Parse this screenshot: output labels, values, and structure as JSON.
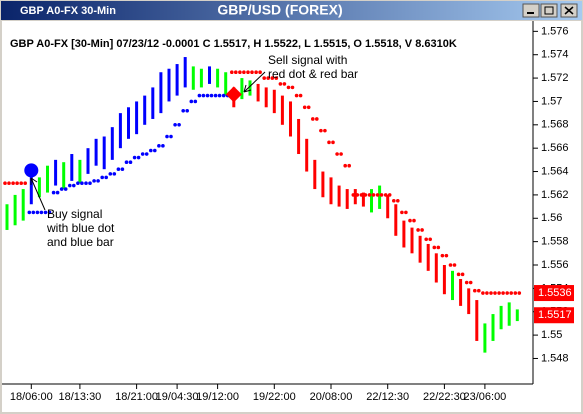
{
  "window": {
    "title": "GBP A0-FX 30-Min",
    "center_title": "GBP/USD (FOREX)"
  },
  "chart_data": {
    "type": "bar-stops",
    "header": "GBP A0-FX [30-Min] 07/23/12 -0.0001 C 1.5517, H 1.5522, L 1.5515, O 1.5518, V 8.6310K",
    "categories": [
      null,
      null,
      null,
      "18/06:00",
      null,
      null,
      null,
      null,
      null,
      "18/13:30",
      null,
      null,
      null,
      null,
      null,
      null,
      "18/21:00",
      null,
      null,
      null,
      null,
      "19/04:30",
      null,
      null,
      null,
      null,
      "19/12:00",
      null,
      null,
      null,
      null,
      null,
      null,
      "19/22:00",
      null,
      null,
      null,
      null,
      null,
      null,
      "20/08:00",
      null,
      null,
      null,
      null,
      null,
      null,
      "22/12:30",
      null,
      null,
      null,
      null,
      null,
      null,
      "22/22:30",
      null,
      null,
      null,
      null,
      "23/06:00",
      null,
      null,
      null,
      null
    ],
    "bars": {
      "low": [
        1.559,
        1.5594,
        1.5598,
        1.5612,
        1.5618,
        1.5622,
        1.5628,
        1.5625,
        1.5632,
        1.563,
        1.5638,
        1.5645,
        1.5642,
        1.565,
        1.566,
        1.5668,
        1.5672,
        1.568,
        1.5685,
        1.569,
        1.57,
        1.5705,
        1.5712,
        1.571,
        1.5712,
        1.5715,
        1.5712,
        1.5705,
        1.5695,
        1.5702,
        1.5705,
        1.57,
        1.5695,
        1.569,
        1.568,
        1.567,
        1.5655,
        1.564,
        1.5625,
        1.5618,
        1.5612,
        1.561,
        1.5608,
        1.5612,
        1.561,
        1.5605,
        1.5608,
        1.56,
        1.5585,
        1.5575,
        1.557,
        1.5562,
        1.5555,
        1.5545,
        1.5535,
        1.553,
        1.5525,
        1.5518,
        1.5495,
        1.5485,
        1.5495,
        1.5505,
        1.5508,
        1.5512
      ],
      "high": [
        1.5612,
        1.562,
        1.5625,
        1.564,
        1.5635,
        1.5645,
        1.565,
        1.5648,
        1.5655,
        1.565,
        1.566,
        1.5668,
        1.567,
        1.5678,
        1.569,
        1.5695,
        1.57,
        1.5705,
        1.5712,
        1.5725,
        1.5728,
        1.5732,
        1.5738,
        1.573,
        1.5728,
        1.573,
        1.5728,
        1.5725,
        1.5712,
        1.572,
        1.5718,
        1.5715,
        1.5712,
        1.571,
        1.5705,
        1.57,
        1.5685,
        1.5668,
        1.565,
        1.564,
        1.5635,
        1.5628,
        1.5625,
        1.5625,
        1.5622,
        1.5625,
        1.5628,
        1.562,
        1.5612,
        1.5598,
        1.5592,
        1.5585,
        1.5578,
        1.557,
        1.556,
        1.5555,
        1.5548,
        1.554,
        1.553,
        1.551,
        1.5518,
        1.5525,
        1.5528,
        1.5522
      ],
      "colors": [
        "lime",
        "lime",
        "lime",
        "blue",
        "lime",
        "lime",
        "blue",
        "lime",
        "blue",
        "lime",
        "blue",
        "blue",
        "blue",
        "blue",
        "blue",
        "blue",
        "blue",
        "blue",
        "blue",
        "blue",
        "blue",
        "blue",
        "blue",
        "lime",
        "lime",
        "blue",
        "lime",
        "lime",
        "red",
        "lime",
        "lime",
        "red",
        "red",
        "red",
        "red",
        "red",
        "red",
        "red",
        "red",
        "red",
        "red",
        "red",
        "red",
        "red",
        "red",
        "lime",
        "lime",
        "red",
        "red",
        "red",
        "red",
        "red",
        "red",
        "red",
        "red",
        "lime",
        "red",
        "red",
        "red",
        "lime",
        "lime",
        "lime",
        "lime",
        "lime"
      ]
    },
    "series": [
      {
        "color": "#0000ff",
        "values": [
          null,
          null,
          null,
          1.5605,
          1.5605,
          1.5605,
          1.5622,
          1.5625,
          1.5628,
          1.563,
          1.563,
          1.5632,
          1.5635,
          1.5638,
          1.5642,
          1.5648,
          1.5652,
          1.5655,
          1.5658,
          1.5662,
          1.567,
          1.568,
          1.5692,
          1.57,
          1.5705,
          1.5705,
          1.5705,
          1.5705,
          null,
          null,
          null,
          null,
          null,
          null,
          null,
          null,
          null,
          null,
          null,
          null,
          null,
          null,
          null,
          null,
          null,
          null,
          null,
          null,
          null,
          null,
          null,
          null,
          null,
          null,
          null,
          null,
          null,
          null,
          null,
          null,
          null,
          null,
          null,
          null
        ]
      },
      {
        "color": "#ff0000",
        "values": [
          1.563,
          1.563,
          1.563,
          null,
          null,
          null,
          null,
          null,
          null,
          null,
          null,
          null,
          null,
          null,
          null,
          null,
          null,
          null,
          null,
          null,
          null,
          null,
          null,
          null,
          null,
          null,
          null,
          null,
          1.5725,
          1.5725,
          1.5725,
          1.5725,
          1.572,
          1.572,
          1.5715,
          1.5712,
          1.5705,
          1.5695,
          1.5685,
          1.5675,
          1.5665,
          1.5655,
          1.5645,
          1.562,
          1.562,
          1.562,
          1.562,
          1.562,
          1.5615,
          1.5605,
          1.5598,
          1.559,
          1.5582,
          1.5575,
          1.5568,
          1.556,
          1.5552,
          1.5545,
          1.5538,
          1.5536,
          1.5536,
          1.5536,
          1.5536,
          1.5536
        ]
      }
    ],
    "signals": [
      {
        "color": "#0000ff",
        "shape": "circle",
        "values": [
          null,
          null,
          null,
          1.5641,
          null,
          null,
          null,
          null,
          null,
          null,
          null,
          null,
          null,
          null,
          null,
          null,
          null,
          null,
          null,
          null,
          null,
          null,
          null,
          null,
          null,
          null,
          null,
          null,
          null,
          null,
          null,
          null,
          null,
          null,
          null,
          null,
          null,
          null,
          null,
          null,
          null,
          null,
          null,
          null,
          null,
          null,
          null,
          null,
          null,
          null,
          null,
          null,
          null,
          null,
          null,
          null,
          null,
          null,
          null,
          null,
          null,
          null,
          null,
          null
        ]
      },
      {
        "color": "#ff0000",
        "shape": "diamond",
        "values": [
          null,
          null,
          null,
          null,
          null,
          null,
          null,
          null,
          null,
          null,
          null,
          null,
          null,
          null,
          null,
          null,
          null,
          null,
          null,
          null,
          null,
          null,
          null,
          null,
          null,
          null,
          null,
          null,
          1.5706,
          null,
          null,
          null,
          null,
          null,
          null,
          null,
          null,
          null,
          null,
          null,
          null,
          null,
          null,
          null,
          null,
          null,
          null,
          null,
          null,
          null,
          null,
          null,
          null,
          null,
          null,
          null,
          null,
          null,
          null,
          null,
          null,
          null,
          null,
          null
        ]
      }
    ],
    "price_markers": [
      1.5536,
      1.5517
    ],
    "annotations": [
      {
        "lines": [
          "Sell signal with",
          "red dot & red bar"
        ]
      },
      {
        "lines": [
          "Buy signal",
          "with blue dot",
          "and blue bar"
        ]
      }
    ],
    "ylim": [
      1.5459,
      1.5768
    ],
    "yticks": [
      1.548,
      1.55,
      1.552,
      1.554,
      1.556,
      1.558,
      1.56,
      1.562,
      1.564,
      1.566,
      1.568,
      1.57,
      1.572,
      1.574,
      1.576
    ]
  }
}
